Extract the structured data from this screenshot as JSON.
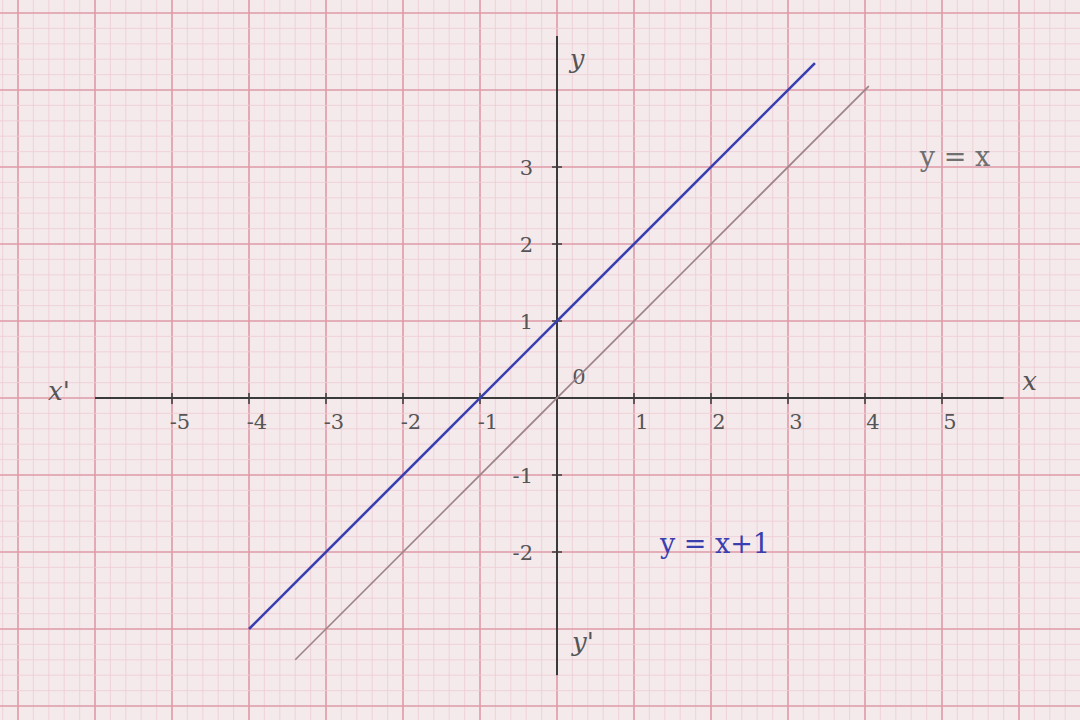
{
  "chart_data": {
    "type": "line",
    "xlim": [
      -6,
      5.8
    ],
    "ylim": [
      -3.6,
      4.7
    ],
    "xticks": [
      -5,
      -4,
      -3,
      -2,
      -1,
      0,
      1,
      2,
      3,
      4,
      5
    ],
    "yticks": [
      -2,
      -1,
      1,
      2,
      3
    ],
    "grid": true,
    "x_label": "x",
    "x_neg_label": "x'",
    "y_label": "y",
    "y_neg_label": "y'",
    "series": [
      {
        "name": "y = x+1",
        "color": "#3a3fb0",
        "line_style": "solid",
        "x": [
          -4,
          3.35
        ],
        "values": [
          -3,
          4.35
        ]
      },
      {
        "name": "y = x",
        "color": "#9b8388",
        "line_style": "solid",
        "x": [
          -3.4,
          4.05
        ],
        "values": [
          -3.4,
          4.05
        ]
      }
    ]
  }
}
